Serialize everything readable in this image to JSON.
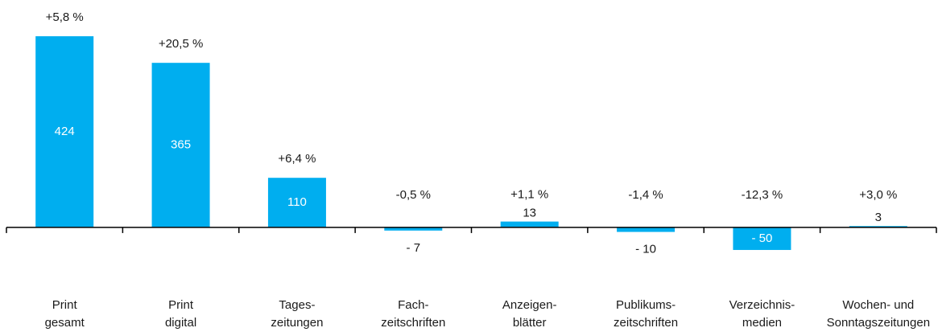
{
  "chart_data": {
    "type": "bar",
    "categories": [
      [
        "Print",
        "gesamt"
      ],
      [
        "Print",
        "digital"
      ],
      [
        "Tages-",
        "zeitungen"
      ],
      [
        "Fach-",
        "zeitschriften"
      ],
      [
        "Anzeigen-",
        "blätter"
      ],
      [
        "Publikums-",
        "zeitschriften"
      ],
      [
        "Verzeichnis-",
        "medien"
      ],
      [
        "Wochen- und",
        "Sonntagszeitungen"
      ]
    ],
    "values": [
      424,
      365,
      110,
      -7,
      13,
      -10,
      -50,
      3
    ],
    "value_labels": [
      "424",
      "365",
      "110",
      "- 7",
      "13",
      "- 10",
      "- 50",
      "3"
    ],
    "annotations": [
      "+5,8 %",
      "+20,5 %",
      "+6,4 %",
      "-0,5 %",
      "+1,1 %",
      "-1,4 %",
      "-12,3 %",
      "+3,0 %"
    ],
    "color": "#00aeef",
    "ylim": [
      -100,
      450
    ]
  }
}
